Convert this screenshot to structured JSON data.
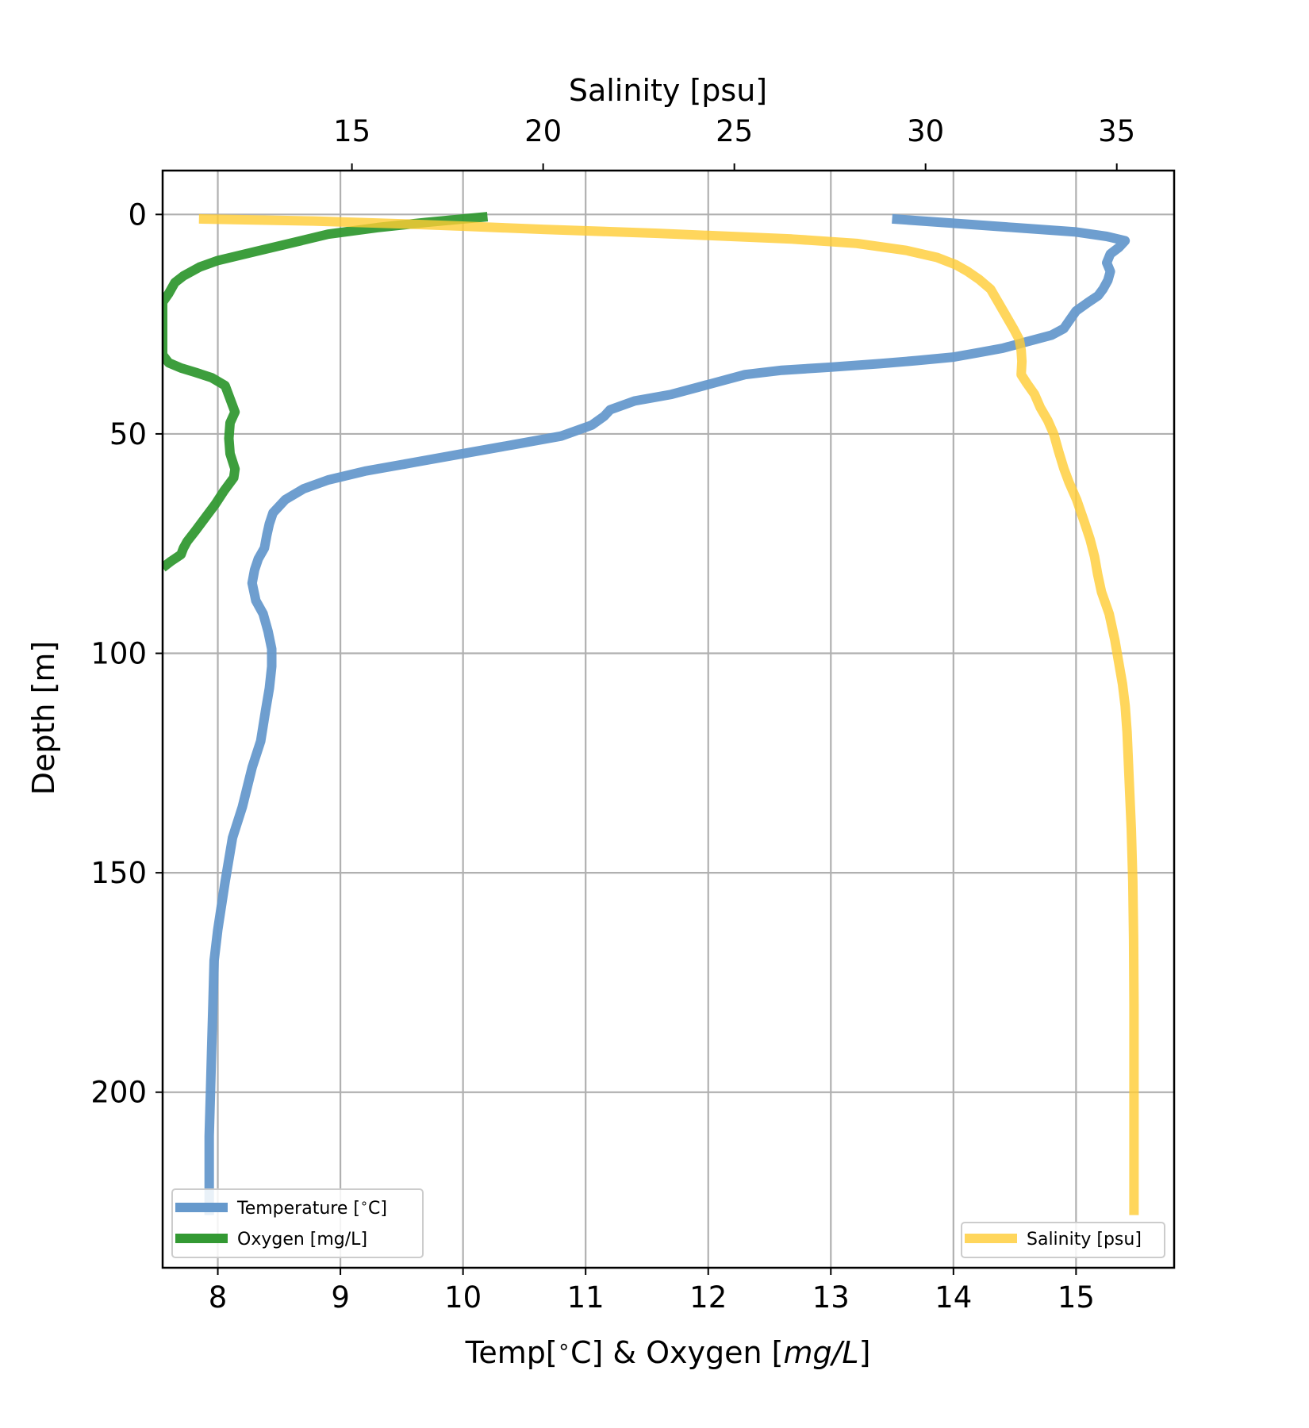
{
  "chart_data": {
    "type": "line",
    "orientation": "depth-profile",
    "grid": true,
    "axes": {
      "depth": {
        "label": "Depth [m]",
        "ticks": [
          0,
          50,
          100,
          150,
          200
        ],
        "range": [
          10,
          -240
        ],
        "inverted": true
      },
      "bottom": {
        "label": "Temp[$^\\circ$C] & Oxygen [$mg/L$]",
        "label_parts": [
          "Temp[",
          "∘",
          "C] & Oxygen [",
          "mg/L",
          "]"
        ],
        "ticks": [
          8,
          9,
          10,
          11,
          12,
          13,
          14,
          15
        ],
        "range": [
          7.55,
          15.8
        ]
      },
      "top": {
        "label": "Salinity [psu]",
        "ticks": [
          15,
          20,
          25,
          30,
          35
        ],
        "range": [
          10.05,
          36.5
        ]
      }
    },
    "series": [
      {
        "name": "Temperature [$^\\circ$C]",
        "legend_parts": [
          "Temperature [",
          "∘",
          "C]"
        ],
        "axis": "bottom",
        "color": "#6699cc",
        "points": [
          [
            13.5,
            1
          ],
          [
            14.0,
            2
          ],
          [
            14.5,
            3
          ],
          [
            15.0,
            4
          ],
          [
            15.25,
            5
          ],
          [
            15.4,
            6
          ],
          [
            15.35,
            7.5
          ],
          [
            15.28,
            9
          ],
          [
            15.25,
            11
          ],
          [
            15.28,
            13
          ],
          [
            15.26,
            15
          ],
          [
            15.22,
            17
          ],
          [
            15.18,
            18.5
          ],
          [
            15.1,
            20
          ],
          [
            15.0,
            22
          ],
          [
            14.95,
            24
          ],
          [
            14.9,
            26
          ],
          [
            14.8,
            27.5
          ],
          [
            14.6,
            29
          ],
          [
            14.4,
            30.5
          ],
          [
            14.2,
            31.5
          ],
          [
            14.0,
            32.5
          ],
          [
            13.7,
            33.3
          ],
          [
            13.4,
            34
          ],
          [
            13.0,
            34.8
          ],
          [
            12.6,
            35.5
          ],
          [
            12.3,
            36.5
          ],
          [
            12.1,
            38
          ],
          [
            11.9,
            39.5
          ],
          [
            11.7,
            41
          ],
          [
            11.4,
            42.5
          ],
          [
            11.2,
            44.5
          ],
          [
            11.15,
            46
          ],
          [
            11.05,
            48
          ],
          [
            10.8,
            50.5
          ],
          [
            10.4,
            52.5
          ],
          [
            10.0,
            54.5
          ],
          [
            9.6,
            56.5
          ],
          [
            9.2,
            58.5
          ],
          [
            8.9,
            60.5
          ],
          [
            8.7,
            62.5
          ],
          [
            8.55,
            65
          ],
          [
            8.45,
            68
          ],
          [
            8.42,
            70.5
          ],
          [
            8.4,
            73
          ],
          [
            8.38,
            76
          ],
          [
            8.33,
            78.5
          ],
          [
            8.3,
            81
          ],
          [
            8.28,
            84
          ],
          [
            8.31,
            88
          ],
          [
            8.37,
            91
          ],
          [
            8.41,
            95
          ],
          [
            8.44,
            99
          ],
          [
            8.44,
            103
          ],
          [
            8.42,
            108
          ],
          [
            8.39,
            113
          ],
          [
            8.35,
            120
          ],
          [
            8.28,
            126
          ],
          [
            8.2,
            135
          ],
          [
            8.12,
            142
          ],
          [
            8.06,
            152
          ],
          [
            8.0,
            163
          ],
          [
            7.97,
            170
          ],
          [
            7.96,
            180
          ],
          [
            7.95,
            190
          ],
          [
            7.94,
            200
          ],
          [
            7.93,
            210
          ],
          [
            7.93,
            220
          ],
          [
            7.93,
            228
          ]
        ]
      },
      {
        "name": "Oxygen [mg/L]",
        "axis": "bottom",
        "color": "#339933",
        "points": [
          [
            10.2,
            0.5
          ],
          [
            9.7,
            1.8
          ],
          [
            9.3,
            3
          ],
          [
            8.9,
            4.5
          ],
          [
            8.6,
            6.5
          ],
          [
            8.3,
            8.5
          ],
          [
            8.0,
            10.5
          ],
          [
            7.85,
            12
          ],
          [
            7.72,
            14
          ],
          [
            7.65,
            15.5
          ],
          [
            7.6,
            18
          ],
          [
            7.55,
            20
          ],
          [
            7.55,
            29
          ],
          [
            7.55,
            32
          ],
          [
            7.6,
            33.8
          ],
          [
            7.7,
            35
          ],
          [
            7.82,
            36
          ],
          [
            7.95,
            37.2
          ],
          [
            8.06,
            39
          ],
          [
            8.1,
            42
          ],
          [
            8.14,
            45
          ],
          [
            8.1,
            47.5
          ],
          [
            8.09,
            51
          ],
          [
            8.1,
            54.5
          ],
          [
            8.14,
            58
          ],
          [
            8.13,
            60
          ],
          [
            8.05,
            63
          ],
          [
            7.98,
            66
          ],
          [
            7.9,
            69
          ],
          [
            7.82,
            72
          ],
          [
            7.75,
            74.5
          ],
          [
            7.72,
            76
          ],
          [
            7.7,
            77.5
          ],
          [
            7.62,
            79
          ],
          [
            7.55,
            80.5
          ]
        ]
      },
      {
        "name": "Salinity [psu]",
        "axis": "top",
        "color": "#ffcc33",
        "points": [
          [
            11.0,
            1
          ],
          [
            14.0,
            1.5
          ],
          [
            16.5,
            2.2
          ],
          [
            18.0,
            2.7
          ],
          [
            20.0,
            3.4
          ],
          [
            23.0,
            4.3
          ],
          [
            26.5,
            5.6
          ],
          [
            28.2,
            6.6
          ],
          [
            29.5,
            8.2
          ],
          [
            30.3,
            9.8
          ],
          [
            30.8,
            11.5
          ],
          [
            31.1,
            13
          ],
          [
            31.4,
            14.8
          ],
          [
            31.7,
            17
          ],
          [
            31.9,
            20
          ],
          [
            32.1,
            23
          ],
          [
            32.3,
            26
          ],
          [
            32.45,
            28.5
          ],
          [
            32.5,
            31
          ],
          [
            32.52,
            33.5
          ],
          [
            32.5,
            36.5
          ],
          [
            32.65,
            38.5
          ],
          [
            32.85,
            41
          ],
          [
            33.0,
            44
          ],
          [
            33.2,
            47
          ],
          [
            33.35,
            50
          ],
          [
            33.48,
            54
          ],
          [
            33.62,
            58
          ],
          [
            33.75,
            61
          ],
          [
            33.95,
            65
          ],
          [
            34.15,
            70
          ],
          [
            34.3,
            74
          ],
          [
            34.42,
            78
          ],
          [
            34.5,
            82
          ],
          [
            34.6,
            86
          ],
          [
            34.8,
            91
          ],
          [
            34.95,
            97
          ],
          [
            35.05,
            102
          ],
          [
            35.15,
            107
          ],
          [
            35.22,
            112
          ],
          [
            35.27,
            118
          ],
          [
            35.32,
            128
          ],
          [
            35.38,
            140
          ],
          [
            35.42,
            152
          ],
          [
            35.44,
            165
          ],
          [
            35.45,
            180
          ],
          [
            35.45,
            200
          ],
          [
            35.45,
            215
          ],
          [
            35.45,
            228
          ]
        ]
      }
    ],
    "legends": [
      {
        "placement": "lower-left",
        "entries": [
          "Temperature [$^\\circ$C]",
          "Oxygen [mg/L]"
        ]
      },
      {
        "placement": "lower-right",
        "entries": [
          "Salinity [psu]"
        ]
      }
    ]
  }
}
